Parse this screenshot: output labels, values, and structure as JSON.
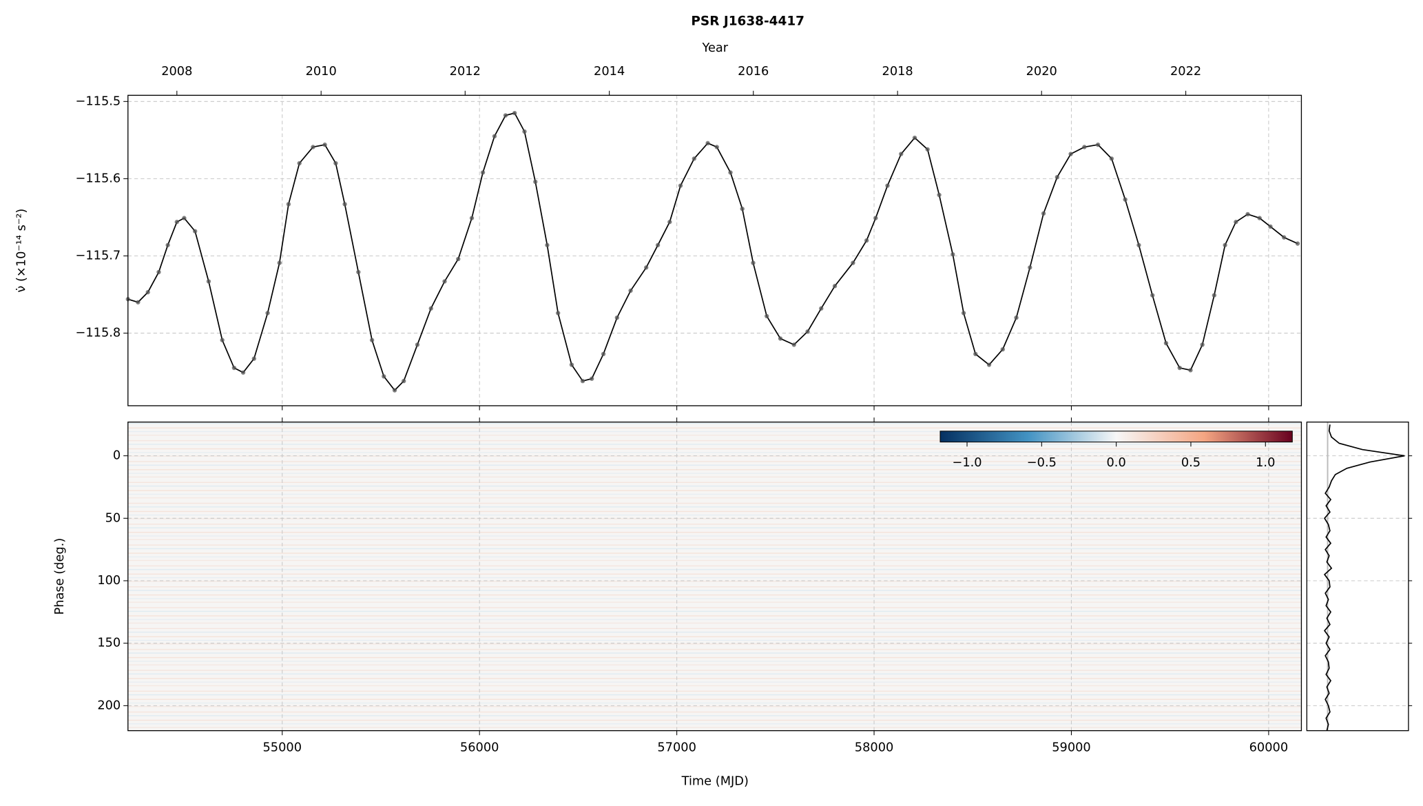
{
  "chart_data": [
    {
      "type": "line",
      "title": "PSR J1638-4417",
      "x2_label": "Year",
      "y_label": "ν̇ (×10⁻¹⁴ s⁻²)",
      "x": [
        54218,
        54269,
        54319,
        54374,
        54420,
        54466,
        54503,
        54558,
        54627,
        54696,
        54756,
        54802,
        54857,
        54926,
        54986,
        55032,
        55087,
        55156,
        55216,
        55271,
        55317,
        55386,
        55455,
        55515,
        55570,
        55616,
        55685,
        55754,
        55823,
        55892,
        55961,
        56017,
        56076,
        56132,
        56178,
        56228,
        56283,
        56343,
        56398,
        56467,
        56523,
        56569,
        56628,
        56697,
        56766,
        56845,
        56904,
        56964,
        57019,
        57088,
        57157,
        57203,
        57272,
        57332,
        57387,
        57456,
        57525,
        57594,
        57663,
        57732,
        57801,
        57893,
        57962,
        58008,
        58068,
        58137,
        58206,
        58271,
        58330,
        58399,
        58454,
        58514,
        58583,
        58652,
        58721,
        58790,
        58859,
        58928,
        58997,
        59066,
        59135,
        59204,
        59273,
        59342,
        59411,
        59480,
        59549,
        59604,
        59664,
        59724,
        59779,
        59834,
        59894,
        59954,
        60009,
        60078,
        60147
      ],
      "values": [
        -115.756,
        -115.76,
        -115.747,
        -115.721,
        -115.686,
        -115.656,
        -115.651,
        -115.668,
        -115.733,
        -115.809,
        -115.845,
        -115.851,
        -115.833,
        -115.774,
        -115.709,
        -115.633,
        -115.58,
        -115.559,
        -115.556,
        -115.58,
        -115.633,
        -115.721,
        -115.809,
        -115.856,
        -115.874,
        -115.862,
        -115.815,
        -115.768,
        -115.733,
        -115.704,
        -115.651,
        -115.592,
        -115.545,
        -115.518,
        -115.515,
        -115.539,
        -115.604,
        -115.686,
        -115.774,
        -115.841,
        -115.862,
        -115.859,
        -115.827,
        -115.78,
        -115.745,
        -115.715,
        -115.686,
        -115.656,
        -115.609,
        -115.574,
        -115.554,
        -115.559,
        -115.592,
        -115.639,
        -115.709,
        -115.778,
        -115.807,
        -115.815,
        -115.798,
        -115.768,
        -115.739,
        -115.709,
        -115.68,
        -115.651,
        -115.609,
        -115.568,
        -115.547,
        -115.562,
        -115.621,
        -115.698,
        -115.774,
        -115.827,
        -115.841,
        -115.821,
        -115.78,
        -115.715,
        -115.645,
        -115.598,
        -115.568,
        -115.559,
        -115.556,
        -115.574,
        -115.627,
        -115.686,
        -115.751,
        -115.813,
        -115.845,
        -115.848,
        -115.815,
        -115.751,
        -115.686,
        -115.656,
        -115.646,
        -115.651,
        -115.662,
        -115.676,
        -115.684
      ],
      "color": "#000000",
      "marker_color": "#555555",
      "xlim": [
        54218,
        60166
      ],
      "ylim": [
        -115.894,
        -115.492
      ],
      "xticks": [
        55000,
        56000,
        57000,
        58000,
        59000,
        60000
      ],
      "yticks": [
        {
          "value": -115.5,
          "label": "−115.5"
        },
        {
          "value": -115.6,
          "label": "−115.6"
        },
        {
          "value": -115.7,
          "label": "−115.7"
        },
        {
          "value": -115.8,
          "label": "−115.8"
        }
      ],
      "x2ticks": [
        {
          "value": 54466,
          "label": "2008"
        },
        {
          "value": 55197,
          "label": "2010"
        },
        {
          "value": 55927,
          "label": "2012"
        },
        {
          "value": 56658,
          "label": "2014"
        },
        {
          "value": 57388,
          "label": "2016"
        },
        {
          "value": 58119,
          "label": "2018"
        },
        {
          "value": 58849,
          "label": "2020"
        },
        {
          "value": 59580,
          "label": "2022"
        }
      ],
      "grid": true
    },
    {
      "type": "heatmap",
      "x_label": "Time (MJD)",
      "y_label": "Phase (deg.)",
      "xlim": [
        54218,
        60166
      ],
      "ylim": [
        -27,
        220
      ],
      "invert_y": true,
      "xticks": [
        55000,
        56000,
        57000,
        58000,
        59000,
        60000
      ],
      "yticks": [
        0,
        50,
        100,
        150,
        200
      ],
      "grid": true,
      "colorbar": {
        "lim": [
          -1.18,
          1.18
        ],
        "colors": [
          "#053061",
          "#4393c3",
          "#f7f7f7",
          "#f4a582",
          "#67001f"
        ],
        "ticks": [
          {
            "value": -1,
            "label": "−1.0"
          },
          {
            "value": -0.5,
            "label": "−0.5"
          },
          {
            "value": 0,
            "label": "0.0"
          },
          0.5,
          {
            "value": 1,
            "label": "1.0"
          }
        ]
      }
    },
    {
      "type": "profile",
      "phase": [
        -25,
        -20,
        -15,
        -10,
        -5,
        0,
        5,
        10,
        15,
        20,
        25,
        30,
        35,
        40,
        45,
        50,
        55,
        60,
        65,
        70,
        75,
        80,
        85,
        90,
        95,
        100,
        105,
        110,
        115,
        120,
        125,
        130,
        135,
        140,
        145,
        150,
        155,
        160,
        165,
        170,
        175,
        180,
        185,
        190,
        195,
        200,
        205,
        210,
        215,
        220
      ],
      "values": [
        0.03,
        0.02,
        0.05,
        0.15,
        0.45,
        1.0,
        0.55,
        0.25,
        0.1,
        0.05,
        0.02,
        -0.03,
        0.04,
        -0.02,
        0.03,
        -0.04,
        0.01,
        0.03,
        -0.02,
        0.04,
        -0.03,
        0.02,
        -0.01,
        0.05,
        -0.04,
        0.02,
        0.03,
        -0.03,
        0.01,
        -0.02,
        0.04,
        -0.01,
        0.03,
        -0.04,
        0.02,
        -0.02,
        0.03,
        -0.03,
        0.01,
        0.02,
        -0.02,
        0.04,
        -0.01,
        0.02,
        -0.03,
        0.01,
        0.03,
        -0.02,
        0.01,
        -0.01
      ],
      "color": "#000000",
      "xlim": [
        -0.27,
        1.05
      ],
      "ylim": [
        -27,
        220
      ],
      "invert_y": true,
      "yticks": [
        0,
        50,
        100,
        150,
        200
      ],
      "grid": true
    }
  ]
}
